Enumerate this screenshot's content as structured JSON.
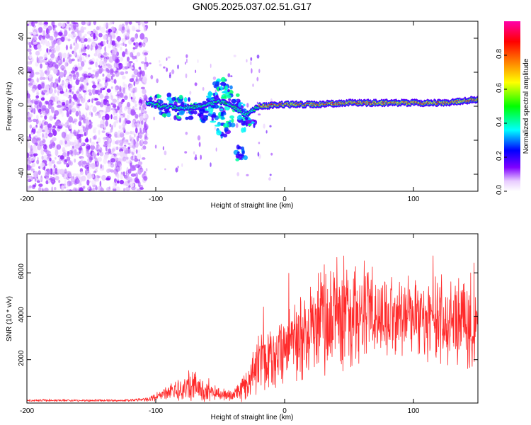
{
  "chart_data": [
    {
      "type": "heatmap",
      "title": "GN05.2025.037.02.51.G17",
      "xlabel": "Height of straight line (km)",
      "ylabel": "Frequency (Hz)",
      "xlim": [
        -200,
        150
      ],
      "ylim": [
        -50,
        50
      ],
      "x_ticks": [
        -200,
        -100,
        0,
        100
      ],
      "y_ticks": [
        -40,
        -20,
        0,
        20,
        40
      ],
      "colorbar": {
        "label": "Normalized spectral amplitude",
        "range": [
          0,
          1
        ],
        "ticks": [
          "0.0",
          "0.2",
          "0.4",
          "0.6",
          "0.8"
        ],
        "colors": [
          "#ffffff",
          "#8000ff",
          "#0000ff",
          "#00ffff",
          "#00ff00",
          "#ffff00",
          "#ff8000",
          "#ff0000",
          "#ff00ff"
        ]
      },
      "regions": [
        {
          "name": "noise",
          "x_range": [
            -200,
            -107
          ],
          "freq_range": [
            -50,
            50
          ],
          "amplitude": 0.1
        },
        {
          "name": "transition",
          "x_range": [
            -107,
            -20
          ],
          "freq_range": [
            -20,
            15
          ],
          "amplitude": 0.45
        },
        {
          "name": "signal-track",
          "x_range": [
            -20,
            150
          ],
          "freq_center": 2,
          "amplitude": 0.8
        }
      ],
      "track_center": [
        [
          -107,
          2
        ],
        [
          -95,
          0
        ],
        [
          -80,
          -1
        ],
        [
          -65,
          0
        ],
        [
          -50,
          3
        ],
        [
          -40,
          0
        ],
        [
          -30,
          -5
        ],
        [
          -20,
          0
        ],
        [
          0,
          1
        ],
        [
          25,
          1
        ],
        [
          50,
          2
        ],
        [
          75,
          2
        ],
        [
          100,
          2
        ],
        [
          125,
          2
        ],
        [
          150,
          4
        ]
      ]
    },
    {
      "type": "line",
      "xlabel": "Height of straight line (km)",
      "ylabel": "SNR (10 * v/v)",
      "xlim": [
        -200,
        150
      ],
      "ylim": [
        0,
        7800
      ],
      "x_ticks": [
        -200,
        -100,
        0,
        100
      ],
      "y_ticks": [
        2000,
        4000,
        6000
      ],
      "color": "#ff2a2a",
      "envelope": [
        {
          "x": -200,
          "mean": 120,
          "amp": 60
        },
        {
          "x": -120,
          "mean": 120,
          "amp": 60
        },
        {
          "x": -105,
          "mean": 180,
          "amp": 120
        },
        {
          "x": -90,
          "mean": 500,
          "amp": 400
        },
        {
          "x": -70,
          "mean": 800,
          "amp": 900
        },
        {
          "x": -60,
          "mean": 500,
          "amp": 500
        },
        {
          "x": -40,
          "mean": 350,
          "amp": 300
        },
        {
          "x": -30,
          "mean": 900,
          "amp": 900
        },
        {
          "x": -20,
          "mean": 1800,
          "amp": 1500
        },
        {
          "x": 0,
          "mean": 2600,
          "amp": 1900
        },
        {
          "x": 15,
          "mean": 3200,
          "amp": 2300
        },
        {
          "x": 35,
          "mean": 4000,
          "amp": 3200
        },
        {
          "x": 60,
          "mean": 4300,
          "amp": 2700
        },
        {
          "x": 90,
          "mean": 4000,
          "amp": 2200
        },
        {
          "x": 120,
          "mean": 3800,
          "amp": 2300
        },
        {
          "x": 150,
          "mean": 3600,
          "amp": 2600
        }
      ]
    }
  ]
}
